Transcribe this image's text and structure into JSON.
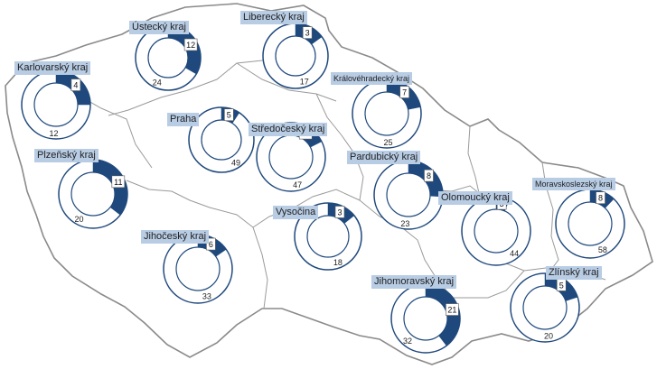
{
  "colors": {
    "share": "#1f497d",
    "remainder": "#ffffff",
    "ring_border": "#1f497d",
    "label_bg": "#b8cce4",
    "map_line": "#8a8a8a"
  },
  "chart_data": {
    "type": "pie",
    "subtype": "donut-map",
    "title": "",
    "legend": "none",
    "regions": [
      {
        "name": "Liberecký kraj",
        "values": [
          3,
          17
        ]
      },
      {
        "name": "Ústecký kraj",
        "values": [
          12,
          24
        ]
      },
      {
        "name": "Karlovarský kraj",
        "values": [
          4,
          12
        ]
      },
      {
        "name": "Královéhradecký kraj",
        "values": [
          7,
          25
        ]
      },
      {
        "name": "Praha",
        "values": [
          5,
          49
        ]
      },
      {
        "name": "Středočeský kraj",
        "values": [
          10,
          47
        ]
      },
      {
        "name": "Plzeňský kraj",
        "values": [
          11,
          20
        ]
      },
      {
        "name": "Pardubický kraj",
        "values": [
          8,
          23
        ]
      },
      {
        "name": "Olomoucký kraj",
        "values": [
          3,
          44
        ]
      },
      {
        "name": "Moravskoslezský kraj",
        "values": [
          8,
          58
        ]
      },
      {
        "name": "Vysočina",
        "values": [
          3,
          18
        ]
      },
      {
        "name": "Jihočeský kraj",
        "values": [
          6,
          33
        ]
      },
      {
        "name": "Jihomoravský kraj",
        "values": [
          21,
          32
        ]
      },
      {
        "name": "Zlínský kraj",
        "values": [
          5,
          20
        ]
      }
    ]
  }
}
